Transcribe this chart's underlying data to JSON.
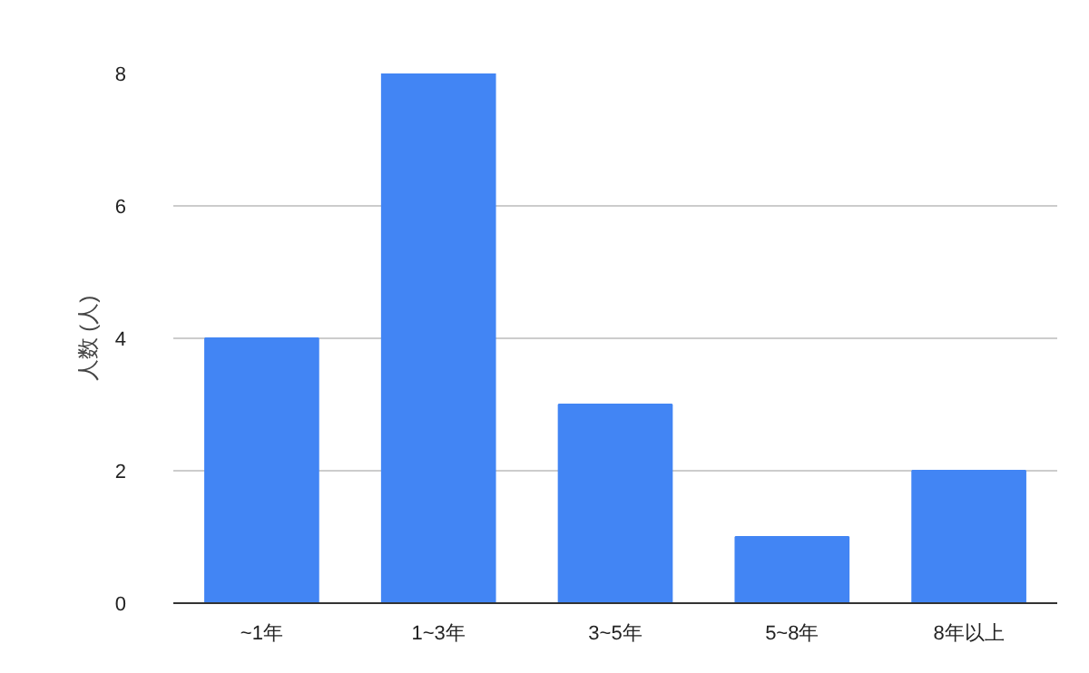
{
  "chart_data": {
    "type": "bar",
    "ylabel": "人数 (人)",
    "categories": [
      "~1年",
      "1~3年",
      "3~5年",
      "5~8年",
      "8年以上"
    ],
    "values": [
      4,
      8,
      3,
      1,
      2
    ],
    "color": "#4285f4",
    "ylim": [
      0,
      8
    ],
    "yticks": [
      0,
      2,
      4,
      6,
      8
    ],
    "grid": "y"
  }
}
